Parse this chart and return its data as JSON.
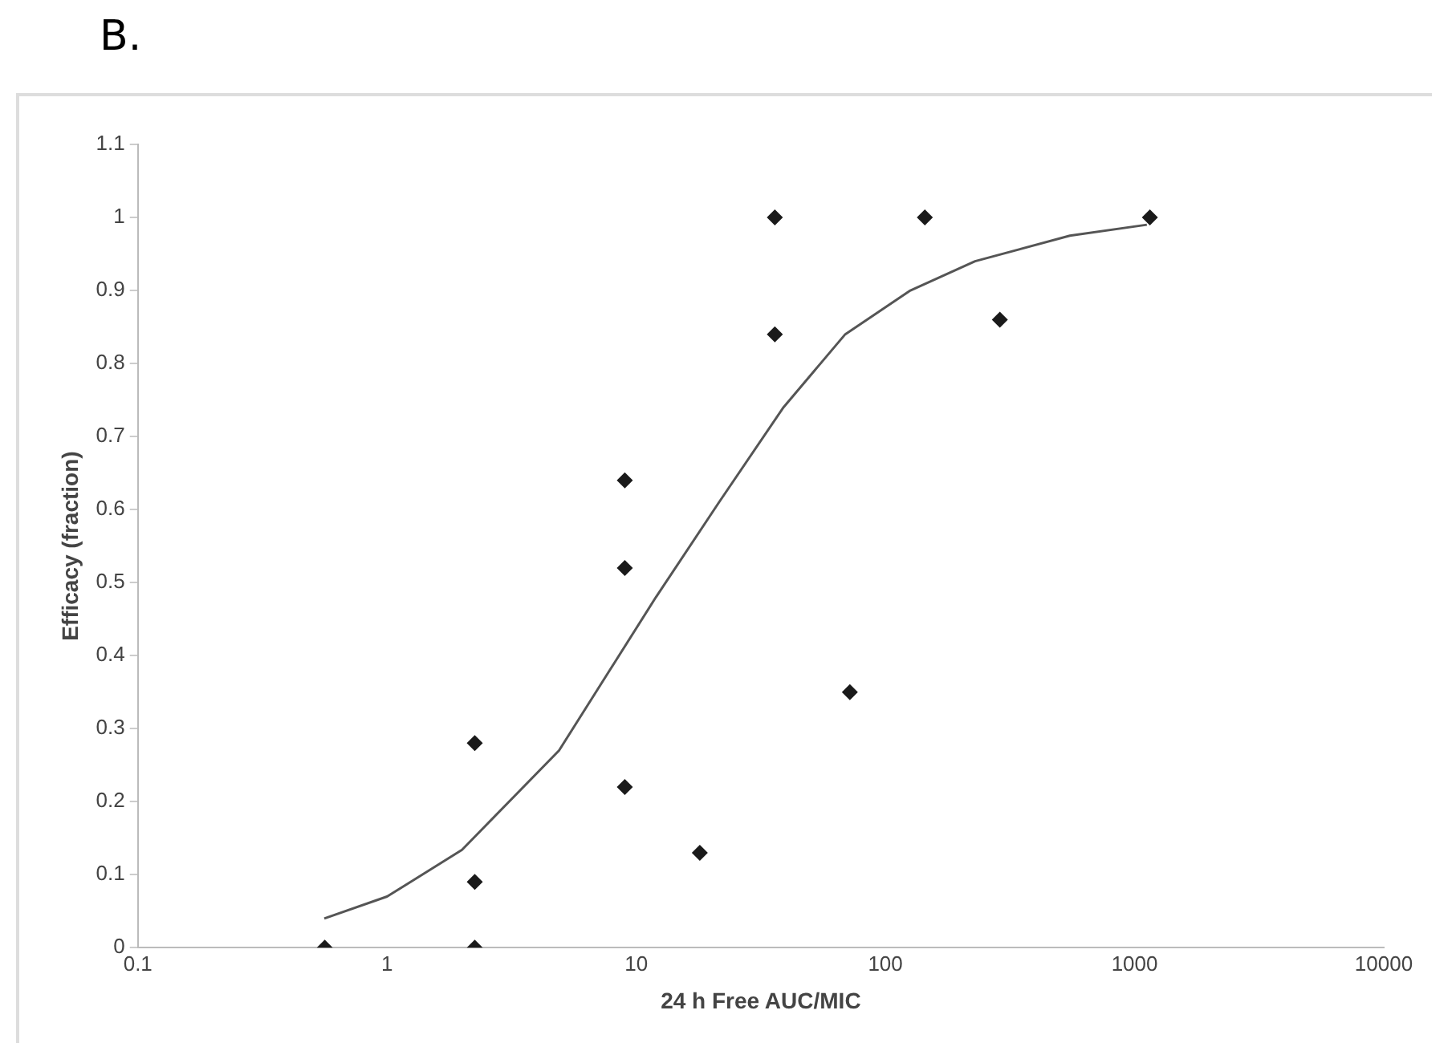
{
  "chart_data": {
    "type": "scatter",
    "title": "B.",
    "xlabel": "24 h Free AUC/MIC",
    "ylabel": "Efficacy (fraction)",
    "log": "x",
    "xlim": [
      0.1,
      10000
    ],
    "xticks": [
      0.1,
      1,
      10,
      100,
      1000,
      10000
    ],
    "ylim": [
      0,
      1.1
    ],
    "yticks": [
      0,
      0.1,
      0.2,
      0.3,
      0.4,
      0.5,
      0.6,
      0.7,
      0.8,
      0.9,
      1,
      1.1
    ],
    "grid": false,
    "legend": false,
    "marker": "diamond",
    "series": [
      {
        "color": "#1a1a1a",
        "x": [
          0.5625,
          2.25,
          2.25,
          2.25,
          9,
          9,
          9,
          18,
          36,
          36,
          72,
          144,
          288,
          1152
        ],
        "values": [
          0,
          0,
          0.09,
          0.28,
          0.64,
          0.52,
          0.22,
          0.13,
          1,
          0.84,
          0.35,
          1,
          0.86,
          1
        ]
      },
      {
        "type": "line",
        "color": "#555555",
        "marker": "none",
        "x": [
          0.56,
          1,
          2,
          4.9,
          12,
          21.5,
          39,
          69,
          126,
          229,
          550,
          1120
        ],
        "values": [
          0.04,
          0.07,
          0.134,
          0.27,
          0.48,
          0.61,
          0.74,
          0.84,
          0.9,
          0.94,
          0.975,
          0.99
        ]
      }
    ]
  }
}
